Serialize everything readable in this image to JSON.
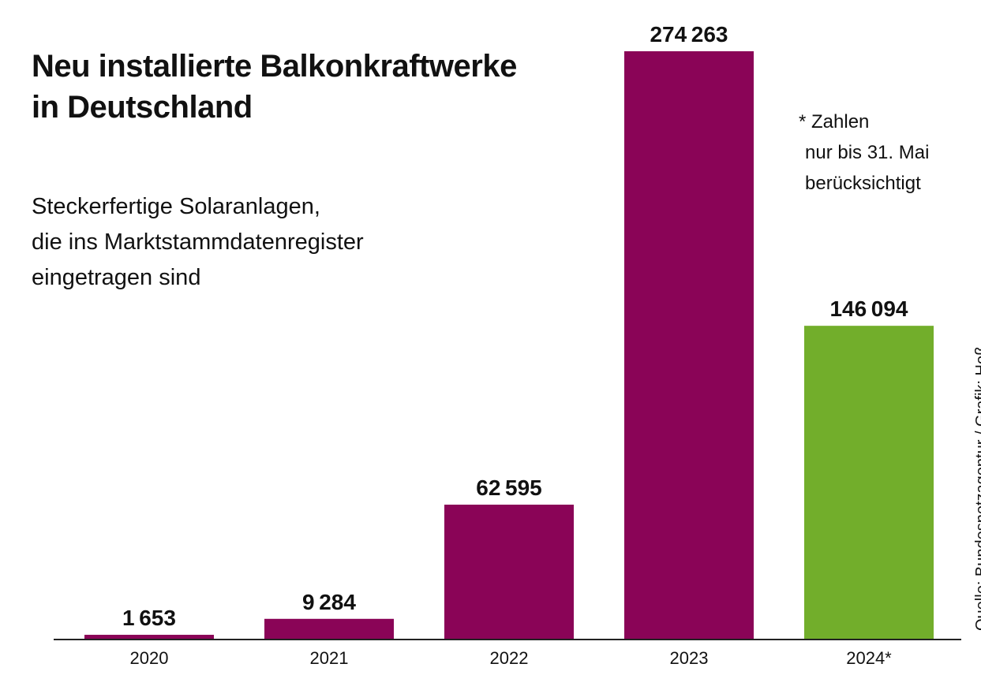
{
  "title_lines": [
    "Neu installierte Balkonkraftwerke",
    "in Deutschland"
  ],
  "subtitle_lines": [
    "Steckerfertige Solaranlagen,",
    "die ins Marktstammdatenregister",
    "eingetragen sind"
  ],
  "note_lines": [
    "* Zahlen",
    "nur bis 31. Mai",
    "berücksichtigt"
  ],
  "source": "Quelle: Bundesnetzagentur / Grafik: Hoß",
  "colors": {
    "bar": "#8a0457",
    "bar_highlight": "#72ae2b",
    "axis": "#222222"
  },
  "chart_data": {
    "type": "bar",
    "title": "Neu installierte Balkonkraftwerke in Deutschland",
    "subtitle": "Steckerfertige Solaranlagen, die ins Marktstammdatenregister eingetragen sind",
    "categories": [
      "2020",
      "2021",
      "2022",
      "2023",
      "2024*"
    ],
    "values": [
      1653,
      9284,
      62595,
      274263,
      146094
    ],
    "value_labels": [
      "1653",
      "9284",
      "62595",
      "274263",
      "146094"
    ],
    "highlight_index": 4,
    "ylim": [
      0,
      274263
    ],
    "grid": false,
    "legend": "none"
  }
}
